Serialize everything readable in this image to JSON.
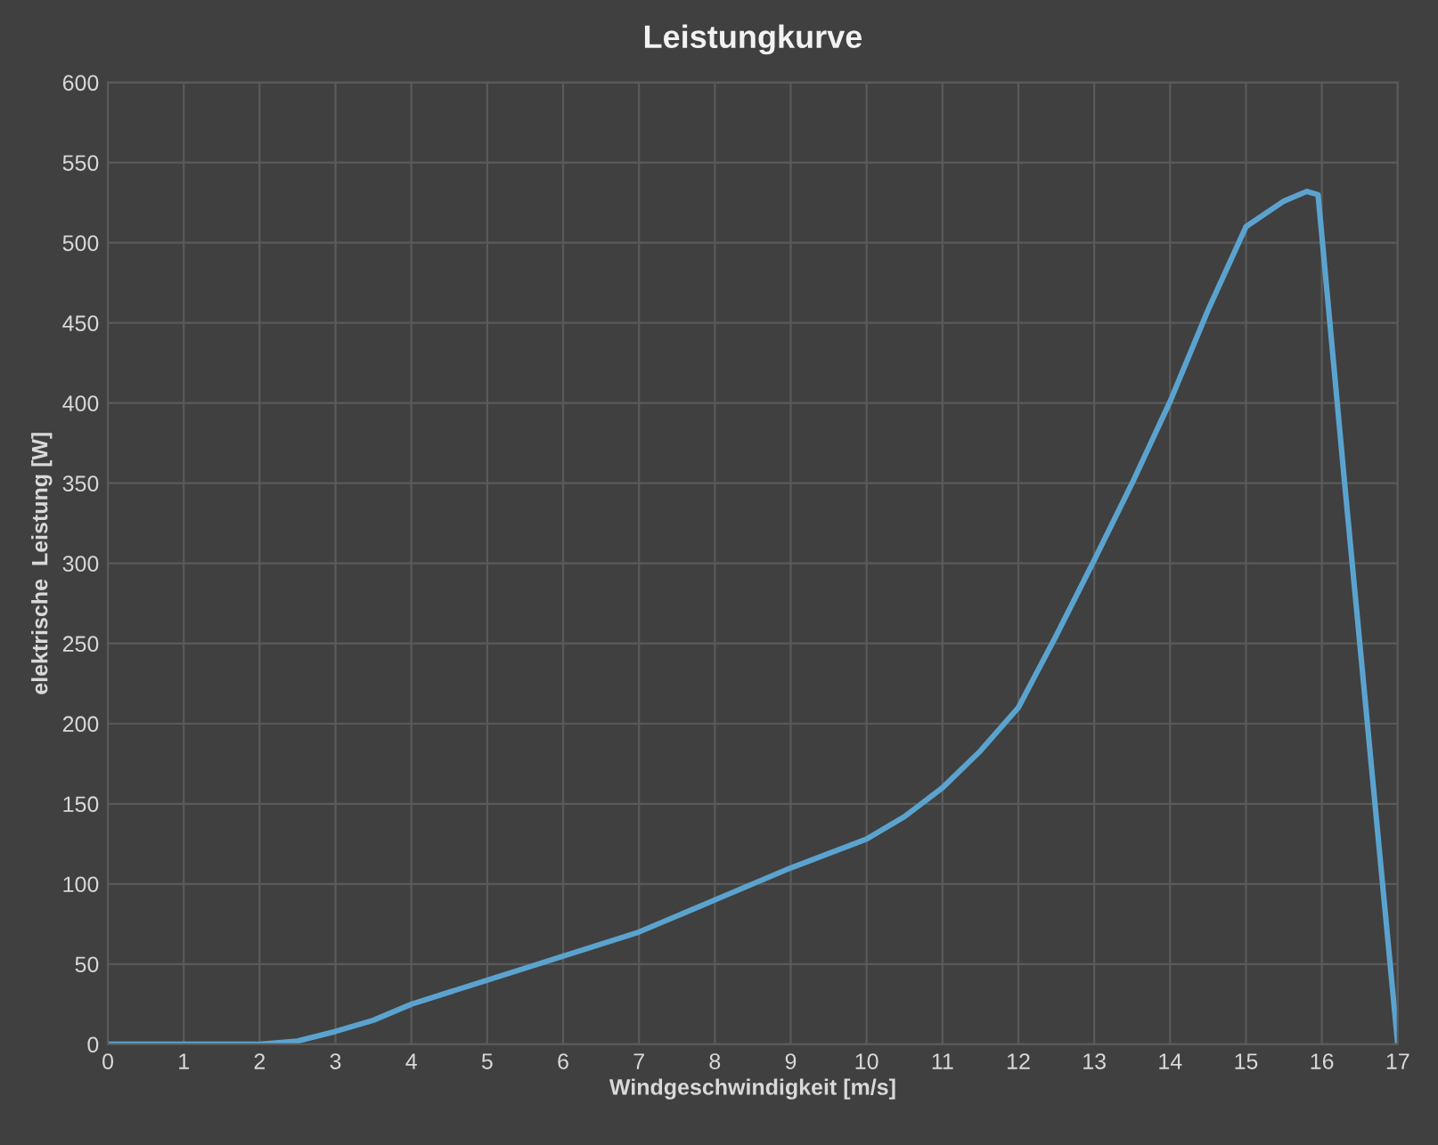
{
  "chart_data": {
    "type": "line",
    "title": "Leistungkurve",
    "xlabel": "Windgeschwindigkeit [m/s]",
    "ylabel": "elektrische  Leistung [W]",
    "x": [
      0,
      1,
      2,
      2.5,
      3,
      3.5,
      4,
      5,
      6,
      7,
      8,
      9,
      10,
      10.5,
      11,
      11.5,
      12,
      12.5,
      13,
      13.5,
      14,
      14.5,
      15,
      15.5,
      15.8,
      15.95,
      16.3,
      16.7,
      17
    ],
    "series": [
      {
        "color": "#5ba3cf",
        "values": [
          0,
          0,
          0,
          2,
          8,
          15,
          25,
          40,
          55,
          70,
          90,
          110,
          128,
          142,
          160,
          183,
          210,
          255,
          302,
          350,
          401,
          458,
          510,
          526,
          532,
          530,
          350,
          150,
          0
        ]
      }
    ],
    "xlim": [
      0,
      17
    ],
    "xticks": [
      0,
      1,
      2,
      3,
      4,
      5,
      6,
      7,
      8,
      9,
      10,
      11,
      12,
      13,
      14,
      15,
      16,
      17
    ],
    "ylim": [
      0,
      600
    ],
    "yticks": [
      0,
      50,
      100,
      150,
      200,
      250,
      300,
      350,
      400,
      450,
      500,
      550,
      600
    ],
    "grid": true,
    "legend": false,
    "marker": "none",
    "line_style": "solid"
  }
}
